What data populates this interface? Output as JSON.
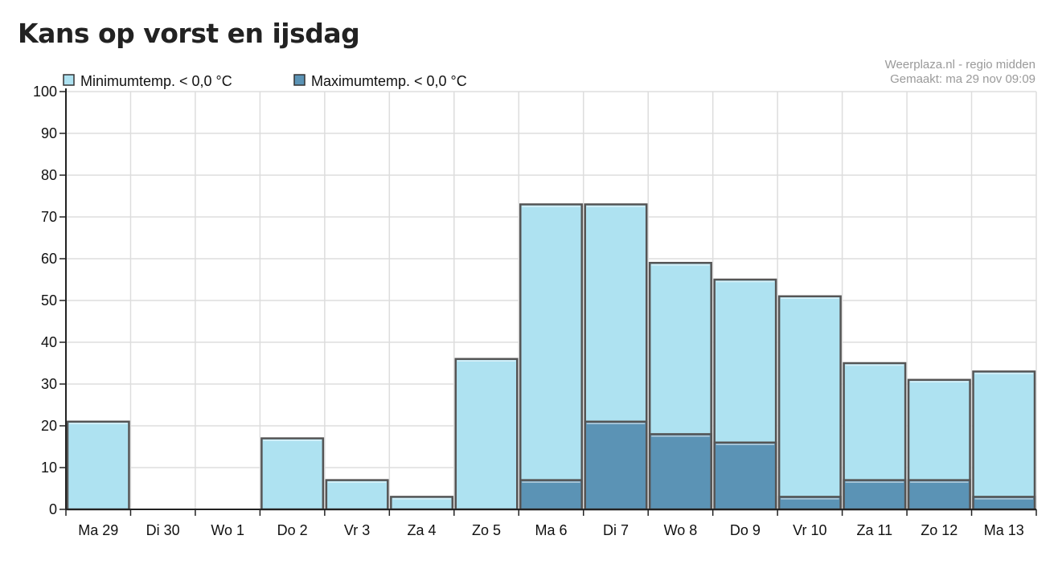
{
  "header": {
    "title": "Kans op vorst en ijsdag",
    "credit_line1": "Weerplaza.nl - regio midden",
    "credit_line2": "Gemaakt: ma 29 nov 09:09"
  },
  "colors": {
    "min_fill": "#aee2f1",
    "max_fill": "#5b93b5",
    "bar_border": "#555555",
    "grid": "#dddddd"
  },
  "chart_data": {
    "type": "bar",
    "title": "Kans op vorst en ijsdag",
    "xlabel": "",
    "ylabel": "",
    "ylim": [
      0,
      100
    ],
    "yticks": [
      0,
      10,
      20,
      30,
      40,
      50,
      60,
      70,
      80,
      90,
      100
    ],
    "grid": true,
    "legend_position": "top-left",
    "categories": [
      "Ma 29",
      "Di 30",
      "Wo 1",
      "Do 2",
      "Vr 3",
      "Za 4",
      "Zo 5",
      "Ma 6",
      "Di 7",
      "Wo 8",
      "Do 9",
      "Vr 10",
      "Za 11",
      "Zo 12",
      "Ma 13"
    ],
    "series": [
      {
        "name": "Minimumtemp. < 0,0 °C",
        "color": "#aee2f1",
        "values": [
          21,
          0,
          0,
          17,
          7,
          3,
          36,
          73,
          73,
          59,
          55,
          51,
          35,
          31,
          33
        ]
      },
      {
        "name": "Maximumtemp. < 0,0 °C",
        "color": "#5b93b5",
        "values": [
          0,
          0,
          0,
          0,
          0,
          0,
          0,
          7,
          21,
          18,
          16,
          3,
          7,
          7,
          3
        ]
      }
    ]
  }
}
